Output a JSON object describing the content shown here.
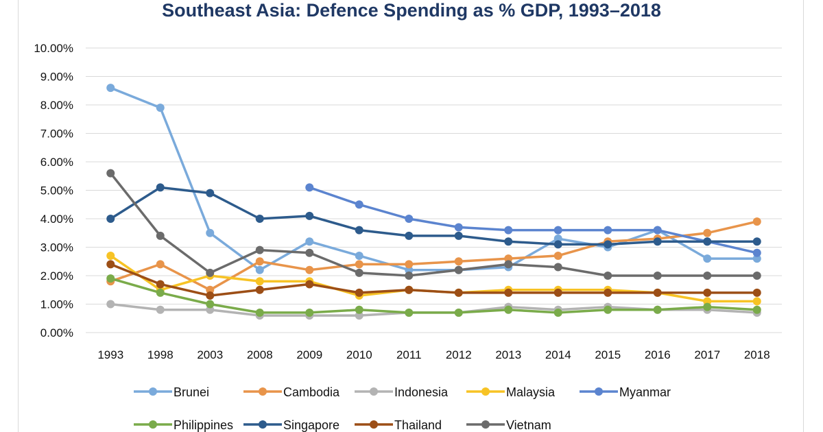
{
  "chart_data": {
    "type": "line",
    "title": "Southeast Asia: Defence Spending as % GDP, 1993–2018",
    "xlabel": "",
    "ylabel": "",
    "categories": [
      "1993",
      "1998",
      "2003",
      "2008",
      "2009",
      "2010",
      "2011",
      "2012",
      "2013",
      "2014",
      "2015",
      "2016",
      "2017",
      "2018"
    ],
    "ylim": [
      0,
      10
    ],
    "y_ticks": [
      0,
      1,
      2,
      3,
      4,
      5,
      6,
      7,
      8,
      9,
      10
    ],
    "y_tick_labels": [
      "0.00%",
      "1.00%",
      "2.00%",
      "3.00%",
      "4.00%",
      "5.00%",
      "6.00%",
      "7.00%",
      "8.00%",
      "9.00%",
      "10.00%"
    ],
    "grid": "horizontal",
    "legend_position": "bottom",
    "series": [
      {
        "name": "Brunei",
        "color": "#7aaadb",
        "values": [
          8.6,
          7.9,
          3.5,
          2.2,
          3.2,
          2.7,
          2.2,
          2.2,
          2.3,
          3.3,
          3.0,
          3.6,
          2.6,
          2.6
        ]
      },
      {
        "name": "Cambodia",
        "color": "#e8944a",
        "values": [
          1.8,
          2.4,
          1.5,
          2.5,
          2.2,
          2.4,
          2.4,
          2.5,
          2.6,
          2.7,
          3.2,
          3.3,
          3.5,
          3.9
        ]
      },
      {
        "name": "Indonesia",
        "color": "#b3b3b3",
        "values": [
          1.0,
          0.8,
          0.8,
          0.6,
          0.6,
          0.6,
          0.7,
          0.7,
          0.9,
          0.8,
          0.9,
          0.8,
          0.8,
          0.7
        ]
      },
      {
        "name": "Malaysia",
        "color": "#f7c325",
        "values": [
          2.7,
          1.5,
          2.0,
          1.8,
          1.8,
          1.3,
          1.5,
          1.4,
          1.5,
          1.5,
          1.5,
          1.4,
          1.1,
          1.1
        ]
      },
      {
        "name": "Myanmar",
        "color": "#5b84cf",
        "values": [
          null,
          null,
          null,
          null,
          5.1,
          4.5,
          4.0,
          3.7,
          3.6,
          3.6,
          3.6,
          3.6,
          3.2,
          2.8
        ]
      },
      {
        "name": "Philippines",
        "color": "#7aab4a",
        "values": [
          1.9,
          1.4,
          1.0,
          0.7,
          0.7,
          0.8,
          0.7,
          0.7,
          0.8,
          0.7,
          0.8,
          0.8,
          0.9,
          0.8
        ]
      },
      {
        "name": "Singapore",
        "color": "#2d5b8c",
        "values": [
          4.0,
          5.1,
          4.9,
          4.0,
          4.1,
          3.6,
          3.4,
          3.4,
          3.2,
          3.1,
          3.1,
          3.2,
          3.2,
          3.2
        ]
      },
      {
        "name": "Thailand",
        "color": "#9c4e16",
        "values": [
          2.4,
          1.7,
          1.3,
          1.5,
          1.7,
          1.4,
          1.5,
          1.4,
          1.4,
          1.4,
          1.4,
          1.4,
          1.4,
          1.4
        ]
      },
      {
        "name": "Vietnam",
        "color": "#6b6b6b",
        "values": [
          5.6,
          3.4,
          2.1,
          2.9,
          2.8,
          2.1,
          2.0,
          2.2,
          2.4,
          2.3,
          2.0,
          2.0,
          2.0,
          2.0
        ]
      }
    ]
  }
}
